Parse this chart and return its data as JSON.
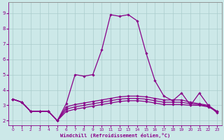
{
  "xlabel": "Windchill (Refroidissement éolien,°C)",
  "background_color": "#cce8e8",
  "grid_color": "#aacccc",
  "line_color": "#880088",
  "xlim": [
    -0.5,
    23.5
  ],
  "ylim": [
    1.7,
    9.7
  ],
  "xticks": [
    0,
    1,
    2,
    3,
    4,
    5,
    6,
    7,
    8,
    9,
    10,
    11,
    12,
    13,
    14,
    15,
    16,
    17,
    18,
    19,
    20,
    21,
    22,
    23
  ],
  "yticks": [
    2,
    3,
    4,
    5,
    6,
    7,
    8,
    9
  ],
  "series_main": [
    3.4,
    3.2,
    2.6,
    2.6,
    2.6,
    2.0,
    3.1,
    5.0,
    4.9,
    5.0,
    6.6,
    8.9,
    8.8,
    8.9,
    8.5,
    6.4,
    4.6,
    3.6,
    3.3,
    3.8,
    3.0,
    3.8,
    3.0,
    2.5
  ],
  "series_flat1": [
    3.4,
    3.2,
    2.6,
    2.6,
    2.6,
    2.0,
    2.6,
    2.75,
    2.85,
    2.95,
    3.05,
    3.15,
    3.25,
    3.3,
    3.3,
    3.25,
    3.15,
    3.05,
    3.05,
    3.05,
    3.0,
    3.0,
    2.9,
    2.6
  ],
  "series_flat2": [
    3.4,
    3.2,
    2.6,
    2.6,
    2.6,
    2.0,
    2.75,
    2.9,
    3.0,
    3.1,
    3.2,
    3.3,
    3.4,
    3.45,
    3.45,
    3.4,
    3.3,
    3.2,
    3.2,
    3.2,
    3.1,
    3.05,
    2.95,
    2.6
  ],
  "series_flat3": [
    3.4,
    3.2,
    2.6,
    2.6,
    2.6,
    2.0,
    2.9,
    3.05,
    3.15,
    3.25,
    3.35,
    3.45,
    3.55,
    3.6,
    3.6,
    3.55,
    3.45,
    3.35,
    3.35,
    3.35,
    3.2,
    3.1,
    3.0,
    2.6
  ]
}
